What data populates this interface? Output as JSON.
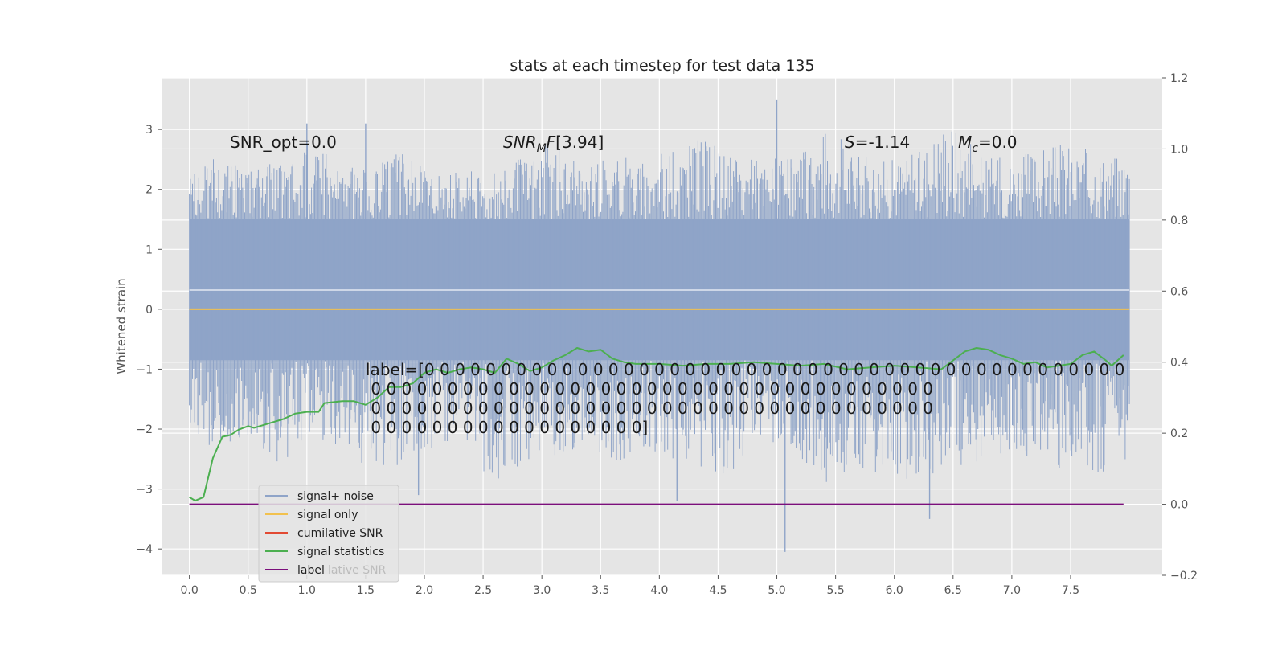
{
  "chart_data": {
    "type": "line",
    "title": "stats at each timestep for test data 135",
    "ylabel": "Whitened strain",
    "xlabel": "",
    "xlim": [
      -0.23,
      8.28
    ],
    "ylim": [
      -4.44,
      3.86
    ],
    "y2lim": [
      -0.2,
      1.2
    ],
    "x_ticks": [
      "0.0",
      "0.5",
      "1.0",
      "1.5",
      "2.0",
      "2.5",
      "3.0",
      "3.5",
      "4.0",
      "4.5",
      "5.0",
      "5.5",
      "6.0",
      "6.5",
      "7.0",
      "7.5"
    ],
    "y_ticks": [
      "3",
      "2",
      "1",
      "0",
      "−1",
      "−2",
      "−3",
      "−4"
    ],
    "y2_ticks": [
      "1.2",
      "1.0",
      "0.8",
      "0.6",
      "0.4",
      "0.2",
      "0.0",
      "−0.2"
    ],
    "grid": true,
    "legend_position": "lower-left",
    "annotations": {
      "snr_opt": "SNR_opt=0.0",
      "snr_mf": "[3.94]",
      "s": "=-1.14",
      "mc": "=0.0",
      "label_lines": [
        "label=[0 0 0 0 0 0 0 0 0 0 0 0 0 0 0 0 0 0 0 0 0 0 0 0 0 0 0 0 0 0 0 0 0 0 0 0 0 0 0 0 0 0 0 0 0 0",
        " 0 0 0 0 0 0 0 0 0 0 0 0 0 0 0 0 0 0 0 0 0 0 0 0 0 0 0 0 0 0 0 0 0 0 0 0 0",
        " 0 0 0 0 0 0 0 0 0 0 0 0 0 0 0 0 0 0 0 0 0 0 0 0 0 0 0 0 0 0 0 0 0 0 0 0 0",
        " 0 0 0 0 0 0 0 0 0 0 0 0 0 0 0 0 0 0]"
      ]
    },
    "legend": {
      "entries": [
        "signal+ noise",
        "signal only",
        "cumilative SNR",
        "signal statistics",
        "label"
      ],
      "ghost_text": "lative SNR"
    },
    "series": [
      {
        "name": "signal+ noise",
        "axis": "left",
        "color": "#8fa4c8",
        "range": [
          0,
          8.0
        ],
        "band": [
          -0.85,
          1.5
        ],
        "peak_upper": [
          2.2,
          2.6,
          2.3,
          2.5,
          2.8,
          2.4,
          2.3,
          2.7,
          2.2,
          2.3,
          2.3,
          2.6,
          2.9,
          2.3,
          2.6,
          2.5,
          2.7,
          2.9,
          2.6,
          2.5,
          2.6,
          3.1,
          2.6,
          2.5,
          2.6,
          3.3,
          2.6,
          2.5,
          2.7,
          2.8,
          2.6,
          2.6
        ],
        "peak_lower": [
          -2.2,
          -2.3,
          -2.2,
          -2.6,
          -2.1,
          -2.3,
          -2.7,
          -2.6,
          -2.4,
          -2.4,
          -2.9,
          -2.6,
          -2.5,
          -2.3,
          -2.6,
          -2.4,
          -2.5,
          -2.9,
          -2.8,
          -2.2,
          -2.4,
          -2.9,
          -2.8,
          -2.9,
          -2.8,
          -2.7,
          -2.6,
          -2.4,
          -2.5,
          -2.9,
          -2.8,
          -2.5
        ],
        "spikes": [
          [
            5.0,
            3.5
          ],
          [
            5.07,
            -4.05
          ],
          [
            6.3,
            -3.5
          ],
          [
            4.15,
            -3.2
          ],
          [
            1.95,
            -3.1
          ],
          [
            1.0,
            3.1
          ],
          [
            1.5,
            3.1
          ]
        ]
      },
      {
        "name": "signal only",
        "axis": "left",
        "color": "#f2c14e",
        "x": [
          0,
          8.0
        ],
        "y": [
          0,
          0
        ]
      },
      {
        "name": "cumilative SNR",
        "axis": "left",
        "color": "#e24a33",
        "x": [],
        "y": []
      },
      {
        "name": "signal statistics",
        "axis": "right",
        "color": "#4caf50",
        "x": [
          0.0,
          0.05,
          0.12,
          0.2,
          0.28,
          0.35,
          0.42,
          0.5,
          0.55,
          0.6,
          0.7,
          0.8,
          0.9,
          1.0,
          1.1,
          1.15,
          1.3,
          1.4,
          1.5,
          1.6,
          1.7,
          1.8,
          1.9,
          2.0,
          2.1,
          2.2,
          2.3,
          2.4,
          2.5,
          2.6,
          2.7,
          2.8,
          2.9,
          3.0,
          3.1,
          3.2,
          3.3,
          3.4,
          3.5,
          3.6,
          3.7,
          3.8,
          4.0,
          4.2,
          4.4,
          4.6,
          4.8,
          5.0,
          5.2,
          5.4,
          5.6,
          5.8,
          6.0,
          6.2,
          6.4,
          6.6,
          6.7,
          6.8,
          6.9,
          7.0,
          7.1,
          7.2,
          7.3,
          7.4,
          7.5,
          7.6,
          7.7,
          7.8,
          7.85,
          7.95
        ],
        "y": [
          0.02,
          0.01,
          0.02,
          0.13,
          0.19,
          0.195,
          0.21,
          0.22,
          0.215,
          0.22,
          0.23,
          0.24,
          0.255,
          0.26,
          0.26,
          0.285,
          0.29,
          0.29,
          0.28,
          0.3,
          0.33,
          0.33,
          0.34,
          0.37,
          0.38,
          0.37,
          0.38,
          0.385,
          0.38,
          0.37,
          0.41,
          0.395,
          0.375,
          0.385,
          0.405,
          0.42,
          0.44,
          0.43,
          0.435,
          0.41,
          0.4,
          0.395,
          0.395,
          0.39,
          0.395,
          0.395,
          0.4,
          0.395,
          0.39,
          0.395,
          0.38,
          0.385,
          0.39,
          0.385,
          0.38,
          0.43,
          0.44,
          0.435,
          0.42,
          0.41,
          0.395,
          0.4,
          0.385,
          0.39,
          0.395,
          0.42,
          0.43,
          0.405,
          0.39,
          0.42
        ]
      },
      {
        "name": "label",
        "axis": "right",
        "color": "#7b0f7b",
        "x": [
          0,
          7.95
        ],
        "y": [
          0,
          0
        ]
      }
    ]
  }
}
